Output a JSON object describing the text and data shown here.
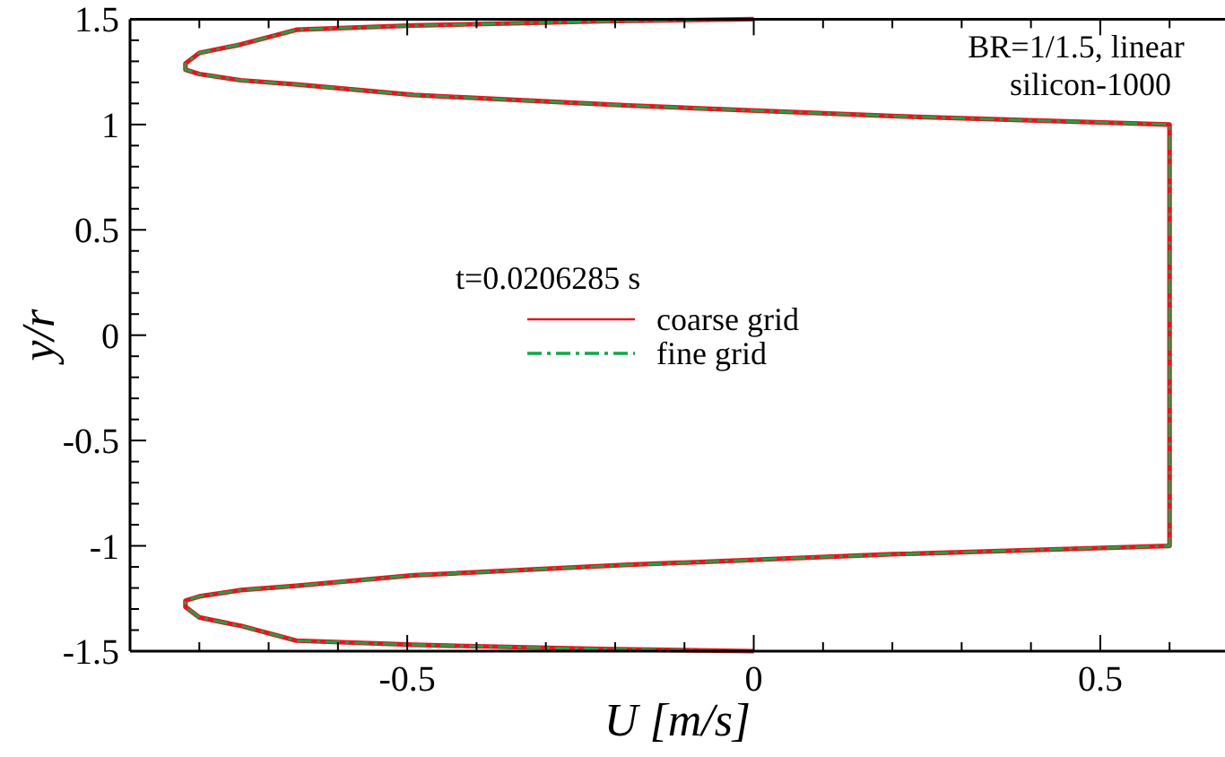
{
  "chart_data": {
    "type": "line",
    "xlabel": "U [m/s]",
    "ylabel": "y/r",
    "legend_title": "t=0.0206285 s",
    "legend": "center",
    "annotations": [
      "BR=1/1.5, linear",
      "silicon-1000"
    ],
    "xlim": [
      -0.9,
      0.68
    ],
    "ylim": [
      -1.5,
      1.5
    ],
    "xticks": [
      {
        "value": -0.8,
        "label": null
      },
      {
        "value": -0.7,
        "label": null
      },
      {
        "value": -0.6,
        "label": null
      },
      -0.5,
      {
        "value": -0.4,
        "label": null
      },
      {
        "value": -0.3,
        "label": null
      },
      {
        "value": -0.2,
        "label": null
      },
      {
        "value": -0.1,
        "label": null
      },
      0,
      {
        "value": 0.1,
        "label": null
      },
      {
        "value": 0.2,
        "label": null
      },
      {
        "value": 0.3,
        "label": null
      },
      {
        "value": 0.4,
        "label": null
      },
      0.5,
      {
        "value": 0.6,
        "label": null
      }
    ],
    "yticks": [
      -1.5,
      {
        "value": -1.4,
        "label": null
      },
      {
        "value": -1.3,
        "label": null
      },
      {
        "value": -1.2,
        "label": null
      },
      {
        "value": -1.1,
        "label": null
      },
      -1,
      {
        "value": -0.9,
        "label": null
      },
      {
        "value": -0.8,
        "label": null
      },
      {
        "value": -0.7,
        "label": null
      },
      {
        "value": -0.6,
        "label": null
      },
      -0.5,
      {
        "value": -0.4,
        "label": null
      },
      {
        "value": -0.3,
        "label": null
      },
      {
        "value": -0.2,
        "label": null
      },
      {
        "value": -0.1,
        "label": null
      },
      0,
      {
        "value": 0.1,
        "label": null
      },
      {
        "value": 0.2,
        "label": null
      },
      {
        "value": 0.3,
        "label": null
      },
      {
        "value": 0.4,
        "label": null
      },
      0.5,
      {
        "value": 0.6,
        "label": null
      },
      {
        "value": 0.7,
        "label": null
      },
      {
        "value": 0.8,
        "label": null
      },
      {
        "value": 0.9,
        "label": null
      },
      1,
      {
        "value": 1.1,
        "label": null
      },
      {
        "value": 1.2,
        "label": null
      },
      {
        "value": 1.3,
        "label": null
      },
      {
        "value": 1.4,
        "label": null
      },
      1.5
    ],
    "grid": false,
    "marker": "none",
    "series": [
      {
        "name": "coarse grid",
        "color": "#e8141e",
        "line_style": "solid",
        "x": [
          0,
          -0.22,
          -0.49,
          -0.66,
          -0.74,
          -0.8,
          -0.82,
          -0.82,
          -0.8,
          -0.74,
          -0.66,
          -0.49,
          -0.18,
          0.2,
          0.6,
          0.6,
          0.2,
          -0.18,
          -0.49,
          -0.66,
          -0.74,
          -0.8,
          -0.82,
          -0.82,
          -0.8,
          -0.74,
          -0.66,
          -0.49,
          -0.22,
          0
        ],
        "values": [
          1.5,
          1.49,
          1.47,
          1.45,
          1.38,
          1.34,
          1.29,
          1.26,
          1.24,
          1.21,
          1.19,
          1.14,
          1.09,
          1.04,
          1.0,
          -1.0,
          -1.04,
          -1.09,
          -1.14,
          -1.19,
          -1.21,
          -1.24,
          -1.26,
          -1.29,
          -1.34,
          -1.38,
          -1.45,
          -1.47,
          -1.49,
          -1.5
        ]
      },
      {
        "name": "fine grid",
        "color": "#10a84a",
        "line_style": "dashdot",
        "x": [
          0,
          -0.22,
          -0.49,
          -0.66,
          -0.74,
          -0.8,
          -0.82,
          -0.82,
          -0.8,
          -0.74,
          -0.66,
          -0.49,
          -0.18,
          0.2,
          0.6,
          0.6,
          0.2,
          -0.18,
          -0.49,
          -0.66,
          -0.74,
          -0.8,
          -0.82,
          -0.82,
          -0.8,
          -0.74,
          -0.66,
          -0.49,
          -0.22,
          0
        ],
        "values": [
          1.5,
          1.49,
          1.47,
          1.45,
          1.38,
          1.34,
          1.29,
          1.26,
          1.24,
          1.21,
          1.19,
          1.14,
          1.09,
          1.04,
          1.0,
          -1.0,
          -1.04,
          -1.09,
          -1.14,
          -1.19,
          -1.21,
          -1.24,
          -1.26,
          -1.29,
          -1.34,
          -1.38,
          -1.45,
          -1.47,
          -1.49,
          -1.5
        ]
      }
    ]
  }
}
